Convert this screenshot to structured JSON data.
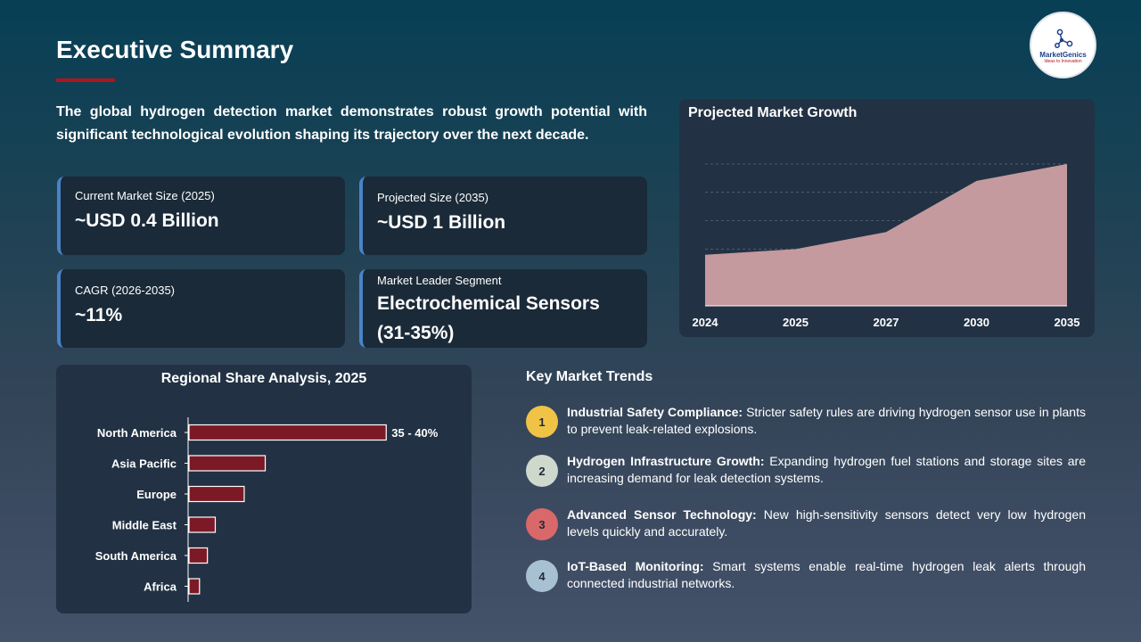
{
  "page": {
    "title": "Executive Summary",
    "intro": "The global hydrogen detection market demonstrates robust growth potential with significant technological evolution shaping its trajectory over the next decade."
  },
  "logo": {
    "name": "MarketGenics",
    "tagline": "Ideas to Innovation"
  },
  "stats": [
    {
      "label": "Current Market Size (2025)",
      "value": "~USD 0.4 Billion"
    },
    {
      "label": "Projected Size (2035)",
      "value": "~USD 1 Billion"
    },
    {
      "label": "CAGR (2026-2035)",
      "value": "~11%"
    },
    {
      "label": "Market Leader Segment",
      "value": "Electrochemical Sensors (31-35%)"
    }
  ],
  "colors": {
    "accent_red": "#b3141c",
    "bar_fill": "#7b1a26",
    "area_fill": "#c49a9e",
    "card_border": "#4a83c7"
  },
  "chart_data": [
    {
      "type": "area",
      "title": "Projected Market Growth",
      "categories": [
        "2024",
        "2025",
        "2027",
        "2030",
        "2035"
      ],
      "series": [
        {
          "values": [
            0.36,
            0.4,
            0.52,
            0.88,
            1.0
          ]
        }
      ],
      "ylim": [
        0,
        1.2
      ],
      "grid": true
    },
    {
      "type": "bar",
      "orientation": "horizontal",
      "title": "Regional Share Analysis, 2025",
      "categories": [
        "North America",
        "Asia Pacific",
        "Europe",
        "Middle East",
        "South America",
        "Africa"
      ],
      "values": [
        37.5,
        14.5,
        10.5,
        5.0,
        3.5,
        2.0
      ],
      "data_labels": [
        "35 - 40%",
        "",
        "",
        "",
        "",
        ""
      ],
      "xlim": [
        0,
        40
      ]
    }
  ],
  "trends": {
    "title": "Key Market Trends",
    "items": [
      {
        "num": "1",
        "color": "#f0c346",
        "heading": "Industrial Safety Compliance:",
        "text": " Stricter safety rules are driving hydrogen sensor use in plants to prevent leak-related explosions."
      },
      {
        "num": "2",
        "color": "#ced8cc",
        "heading": "Hydrogen Infrastructure Growth:",
        "text": " Expanding hydrogen fuel stations and storage sites are increasing demand for leak detection systems."
      },
      {
        "num": "3",
        "color": "#d9686a",
        "heading": "Advanced Sensor Technology:",
        "text": " New high-sensitivity sensors detect very low hydrogen levels quickly and accurately."
      },
      {
        "num": "4",
        "color": "#a7c1d3",
        "heading": "IoT-Based Monitoring:",
        "text": " Smart systems enable real-time hydrogen leak alerts through connected industrial networks."
      }
    ]
  }
}
